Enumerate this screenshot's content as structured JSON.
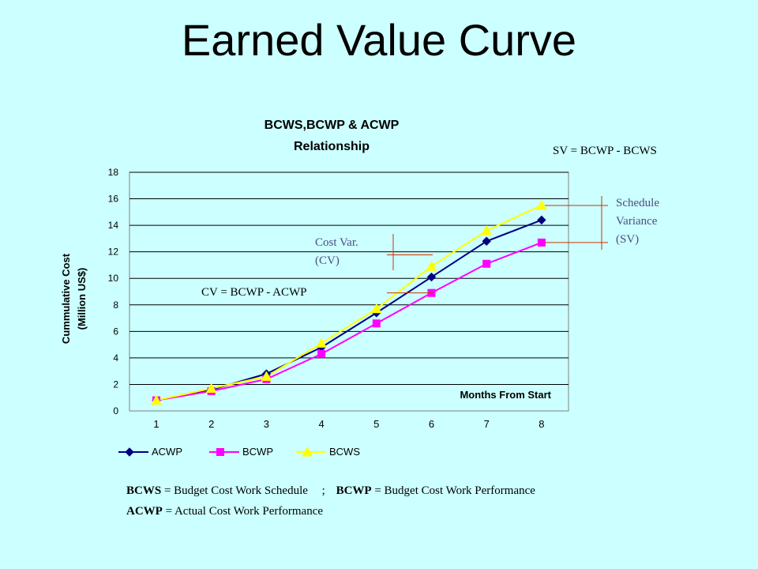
{
  "slide": {
    "title": "Earned Value Curve"
  },
  "chart_data": {
    "type": "line",
    "title_line1": "BCWS,BCWP & ACWP",
    "title_line2": "Relationship",
    "ylabel_line1": "Cummulative Cost",
    "ylabel_line2": "(Million US$)",
    "xlabel": "Months From Start",
    "ylim": [
      0,
      18
    ],
    "yticks": [
      0,
      2,
      4,
      6,
      8,
      10,
      12,
      14,
      16,
      18
    ],
    "x": [
      1,
      2,
      3,
      4,
      5,
      6,
      7,
      8
    ],
    "grid": "horizontal",
    "legend_position": "bottom",
    "series": [
      {
        "name": "ACWP",
        "color": "#000080",
        "marker": "diamond",
        "values": [
          0.8,
          1.6,
          2.8,
          4.8,
          7.4,
          10.1,
          12.8,
          14.4
        ]
      },
      {
        "name": "BCWP",
        "color": "#ff00ff",
        "marker": "square",
        "values": [
          0.8,
          1.5,
          2.4,
          4.3,
          6.6,
          8.9,
          11.1,
          12.7
        ]
      },
      {
        "name": "BCWS",
        "color": "#ffff00",
        "marker": "triangle",
        "values": [
          0.8,
          1.7,
          2.6,
          5.1,
          7.7,
          10.9,
          13.6,
          15.5
        ]
      }
    ]
  },
  "annotations": {
    "sv_formula": "SV = BCWP - BCWS",
    "cv_formula": "CV = BCWP - ACWP",
    "cost_var_line1": "Cost Var.",
    "cost_var_line2": "(CV)",
    "sched_line1": "Schedule",
    "sched_line2": "Variance",
    "sched_line3": "(SV)",
    "accent_line_color": "#cc3300"
  },
  "definitions": {
    "bcws_term": "BCWS",
    "bcws_def": "= Budget Cost Work Schedule",
    "separator": ";",
    "bcwp_term": "BCWP",
    "bcwp_def": "= Budget Cost Work Performance",
    "acwp_term": "ACWP",
    "acwp_def": "= Actual Cost Work Performance"
  }
}
